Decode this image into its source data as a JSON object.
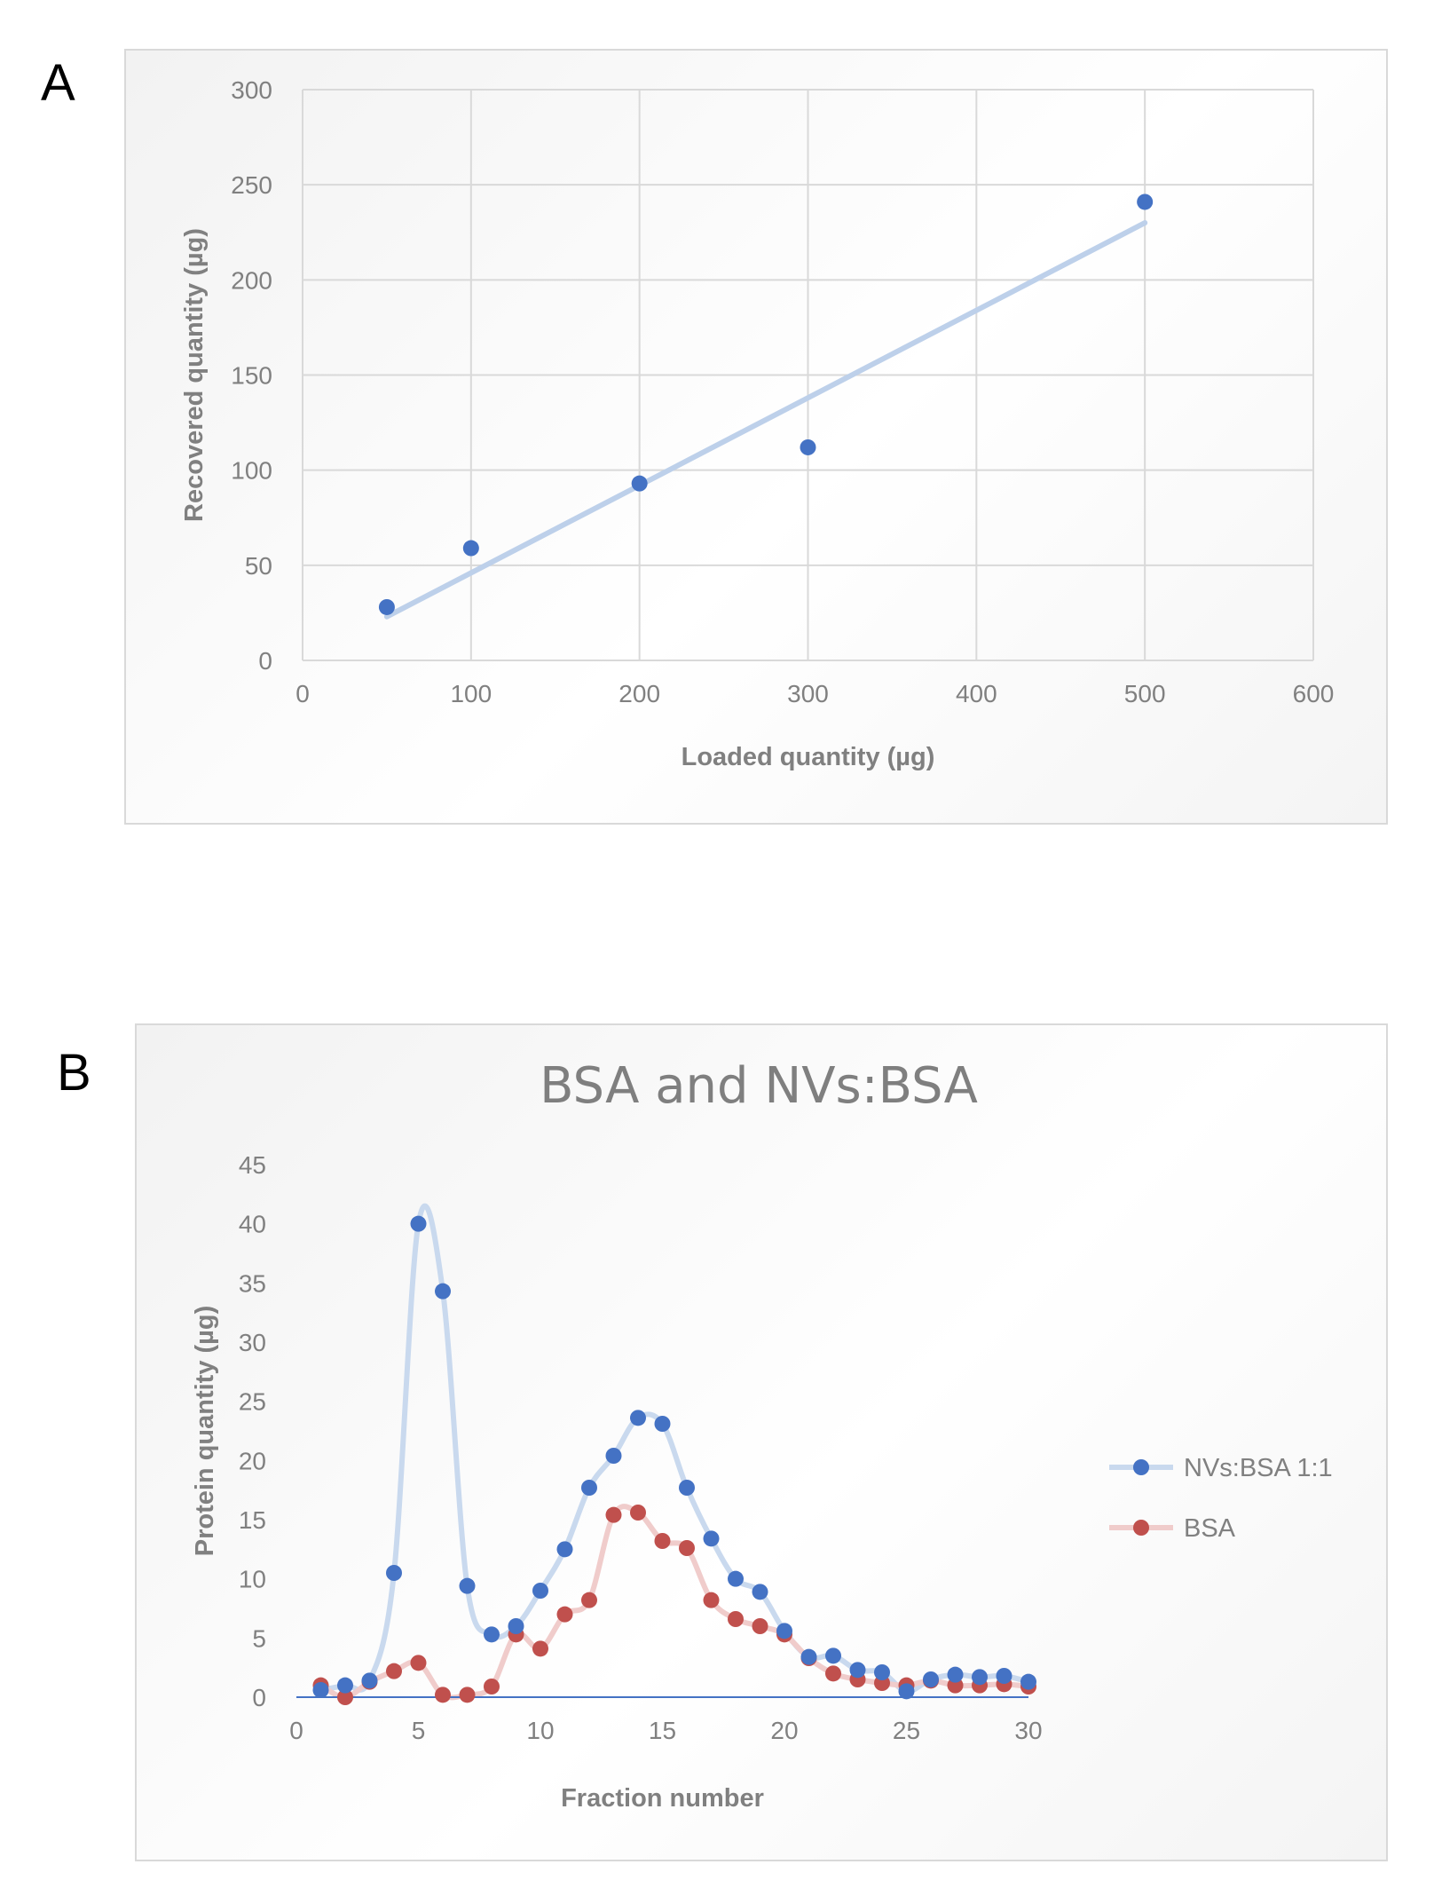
{
  "panels": {
    "a_label": "A",
    "b_label": "B"
  },
  "chart_data": [
    {
      "type": "scatter",
      "title": "",
      "xlabel": "Loaded quantity (µg)",
      "ylabel": "Recovered quantity (µg)",
      "xlim": [
        0,
        600
      ],
      "ylim": [
        0,
        300
      ],
      "xticks": [
        0,
        100,
        200,
        300,
        400,
        500,
        600
      ],
      "yticks": [
        0,
        50,
        100,
        150,
        200,
        250,
        300
      ],
      "grid": true,
      "series": [
        {
          "x": [
            50,
            100,
            200,
            300,
            500
          ],
          "y": [
            28,
            59,
            93,
            112,
            241
          ]
        }
      ],
      "trendline": {
        "type": "linear",
        "x": [
          50,
          500
        ],
        "y": [
          23,
          230
        ]
      },
      "colors": {
        "marker": "#4472c4",
        "trend": "#bdd0ea"
      }
    },
    {
      "type": "line",
      "title": "BSA and NVs:BSA",
      "xlabel": "Fraction number",
      "ylabel": "Protein quantity (µg)",
      "xlim": [
        0,
        30
      ],
      "ylim": [
        0,
        45
      ],
      "xticks": [
        0,
        5,
        10,
        15,
        20,
        25,
        30
      ],
      "yticks": [
        0,
        5,
        10,
        15,
        20,
        25,
        30,
        35,
        40,
        45
      ],
      "grid": false,
      "legend_position": "right",
      "x": [
        1,
        2,
        3,
        4,
        5,
        6,
        7,
        8,
        9,
        10,
        11,
        12,
        13,
        14,
        15,
        16,
        17,
        18,
        19,
        20,
        21,
        22,
        23,
        24,
        25,
        26,
        27,
        28,
        29,
        30
      ],
      "series": [
        {
          "name": "NVs:BSA 1:1",
          "values": [
            0.6,
            1.0,
            1.4,
            10.5,
            40.0,
            34.3,
            9.4,
            5.3,
            6.0,
            9.0,
            12.5,
            17.7,
            20.4,
            23.6,
            23.1,
            17.7,
            13.4,
            10.0,
            8.9,
            5.6,
            3.4,
            3.5,
            2.3,
            2.1,
            0.5,
            1.5,
            1.9,
            1.7,
            1.8,
            1.3
          ],
          "line_color": "#c9d9ee",
          "marker_color": "#4472c4"
        },
        {
          "name": "BSA",
          "values": [
            1.0,
            0.0,
            1.3,
            2.2,
            2.9,
            0.2,
            0.2,
            0.9,
            5.3,
            4.1,
            7.0,
            8.2,
            15.4,
            15.6,
            13.2,
            12.6,
            8.2,
            6.6,
            6.0,
            5.3,
            3.3,
            2.0,
            1.5,
            1.2,
            1.0,
            1.4,
            1.0,
            1.0,
            1.1,
            0.9
          ],
          "line_color": "#f0cccb",
          "marker_color": "#c0504d"
        }
      ],
      "baseline_color": "#4472c4"
    }
  ]
}
